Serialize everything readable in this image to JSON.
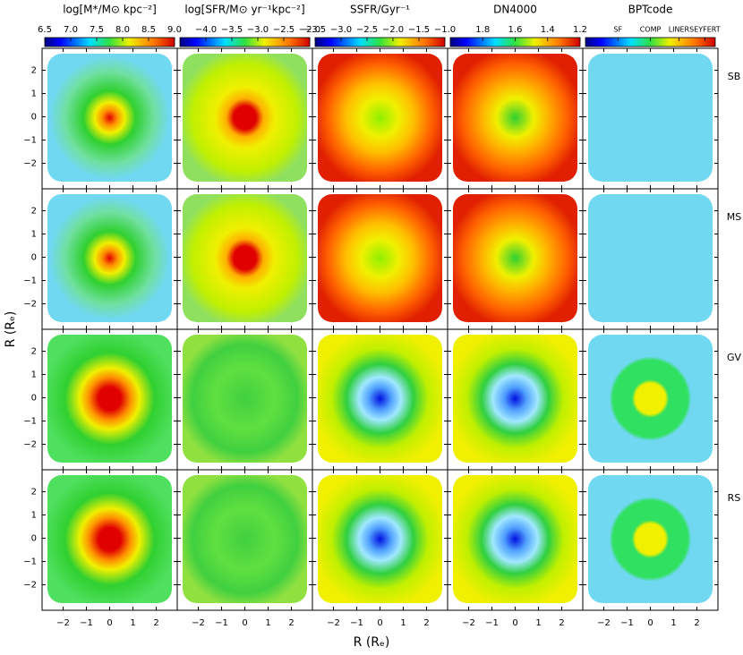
{
  "figure": {
    "columns": [
      {
        "title": "log[M*/M⊙ kpc⁻²]",
        "colorbar_ticks": [
          "6.5",
          "7.0",
          "7.5",
          "8.0",
          "8.5",
          "9.0"
        ]
      },
      {
        "title": "log[SFR/M⊙ yr⁻¹kpc⁻²]",
        "colorbar_ticks": [
          "−4.0",
          "−3.5",
          "−3.0",
          "−2.5",
          "−2.0"
        ]
      },
      {
        "title": "SSFR/Gyr⁻¹",
        "colorbar_ticks": [
          "−3.5",
          "−3.0",
          "−2.5",
          "−2.0",
          "−1.5",
          "−1.0"
        ]
      },
      {
        "title": "DN4000",
        "colorbar_ticks": [
          "1.8",
          "1.6",
          "1.4",
          "1.2"
        ]
      },
      {
        "title": "BPTcode",
        "colorbar_ticks": [
          "SF",
          "COMP",
          "LINER",
          "SEYFERT"
        ]
      }
    ],
    "rows": [
      "SB",
      "MS",
      "GV",
      "RS"
    ],
    "axis_ticks": [
      "−2",
      "−1",
      "0",
      "1",
      "2"
    ],
    "x_axis_label": "R (Rₑ)",
    "y_axis_label": "R (Rₑ)"
  }
}
